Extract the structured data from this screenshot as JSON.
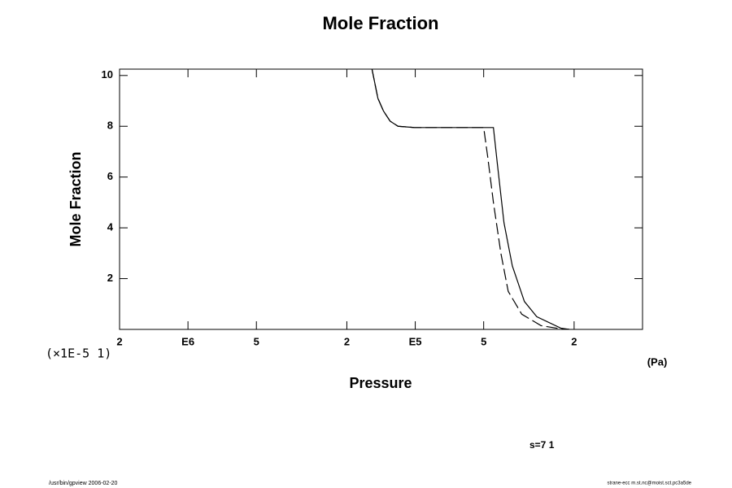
{
  "chart_data": {
    "type": "line",
    "title": "Mole Fraction",
    "x_label": "Pressure",
    "y_label": "Mole Fraction",
    "x_unit": "(Pa)",
    "y_scale_note": "(×1E-5 1)",
    "annotation": "s=7 1",
    "footer_left": "/usr/bin/gpview 2006-02-20",
    "footer_right": "strane-ecc m.st.nc@moist.sct.pc3a5de",
    "x_scale": "log",
    "xlim": [
      2000000,
      10000
    ],
    "ylim": [
      0,
      10.25
    ],
    "xticks": [
      {
        "value": 2000000,
        "label": "2"
      },
      {
        "value": 1000000,
        "label": "E6"
      },
      {
        "value": 500000,
        "label": "5"
      },
      {
        "value": 200000,
        "label": "2"
      },
      {
        "value": 100000,
        "label": "E5"
      },
      {
        "value": 50000,
        "label": "5"
      },
      {
        "value": 20000,
        "label": "2"
      }
    ],
    "yticks": [
      2,
      4,
      6,
      8,
      10
    ],
    "series": [
      {
        "style": "solid",
        "color": "#000000",
        "x": [
          155000,
          146000,
          138000,
          129000,
          119000,
          101000,
          66700,
          45300,
          43500,
          40700,
          37400,
          33100,
          29200,
          22900,
          21000
        ],
        "values": [
          10.25,
          9.1,
          8.6,
          8.2,
          8.0,
          7.95,
          7.95,
          7.95,
          6.5,
          4.2,
          2.5,
          1.1,
          0.5,
          0.05,
          0
        ]
      },
      {
        "style": "dashed",
        "color": "#000000",
        "x": [
          155000,
          146000,
          138000,
          129000,
          119000,
          101000,
          66700,
          50000,
          48000,
          45300,
          42000,
          39000,
          34000,
          28000,
          22900,
          21000
        ],
        "values": [
          10.25,
          9.1,
          8.6,
          8.2,
          8.0,
          7.95,
          7.95,
          7.95,
          6.8,
          5.0,
          3.0,
          1.5,
          0.6,
          0.15,
          0.02,
          0
        ]
      }
    ]
  }
}
